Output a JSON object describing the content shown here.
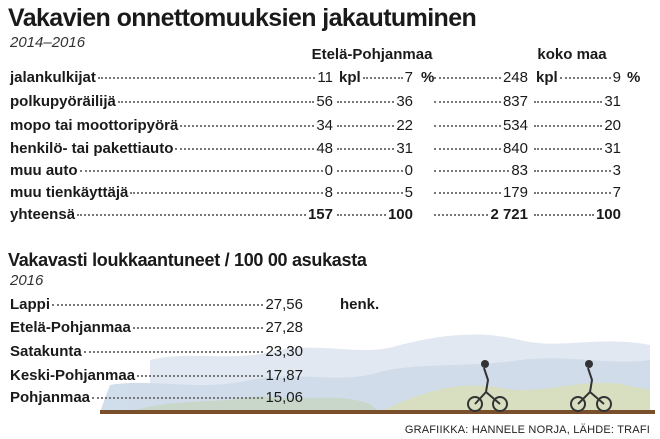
{
  "header": {
    "title": "Vakavien onnettomuuksien jakautuminen",
    "subtitle": "2014–2016"
  },
  "table": {
    "columns": [
      "Etelä-Pohjanmaa",
      "koko maa"
    ],
    "units": [
      "kpl",
      "%"
    ],
    "rows": [
      [
        "jalankulkijat",
        "11",
        "7",
        "248",
        "9"
      ],
      [
        "polkupyöräilijä",
        "56",
        "36",
        "837",
        "31"
      ],
      [
        "mopo tai moottoripyörä",
        "34",
        "22",
        "534",
        "20"
      ],
      [
        "henkilö- tai pakettiauto",
        "48",
        "31",
        "840",
        "31"
      ],
      [
        "muu auto",
        "0",
        "0",
        "83",
        "3"
      ],
      [
        "muu tienkäyttäjä",
        "8",
        "5",
        "179",
        "7"
      ],
      [
        "yhteensä",
        "157",
        "100",
        "2 721",
        "100"
      ]
    ]
  },
  "table2": {
    "title": "Vakavasti loukkaantuneet / 100 00 asukasta",
    "subtitle": "2016",
    "unit": "henk.",
    "rows": [
      [
        "Lappi",
        "27,56"
      ],
      [
        "Etelä-Pohjanmaa",
        "27,28"
      ],
      [
        "Satakunta",
        "23,30"
      ],
      [
        "Keski-Pohjanmaa",
        "17,87"
      ],
      [
        "Pohjanmaa",
        "15,06"
      ]
    ]
  },
  "footer": {
    "credit": "GRAFIIKKA: HANNELE NORJA, LÄHDE: TRAFI"
  }
}
